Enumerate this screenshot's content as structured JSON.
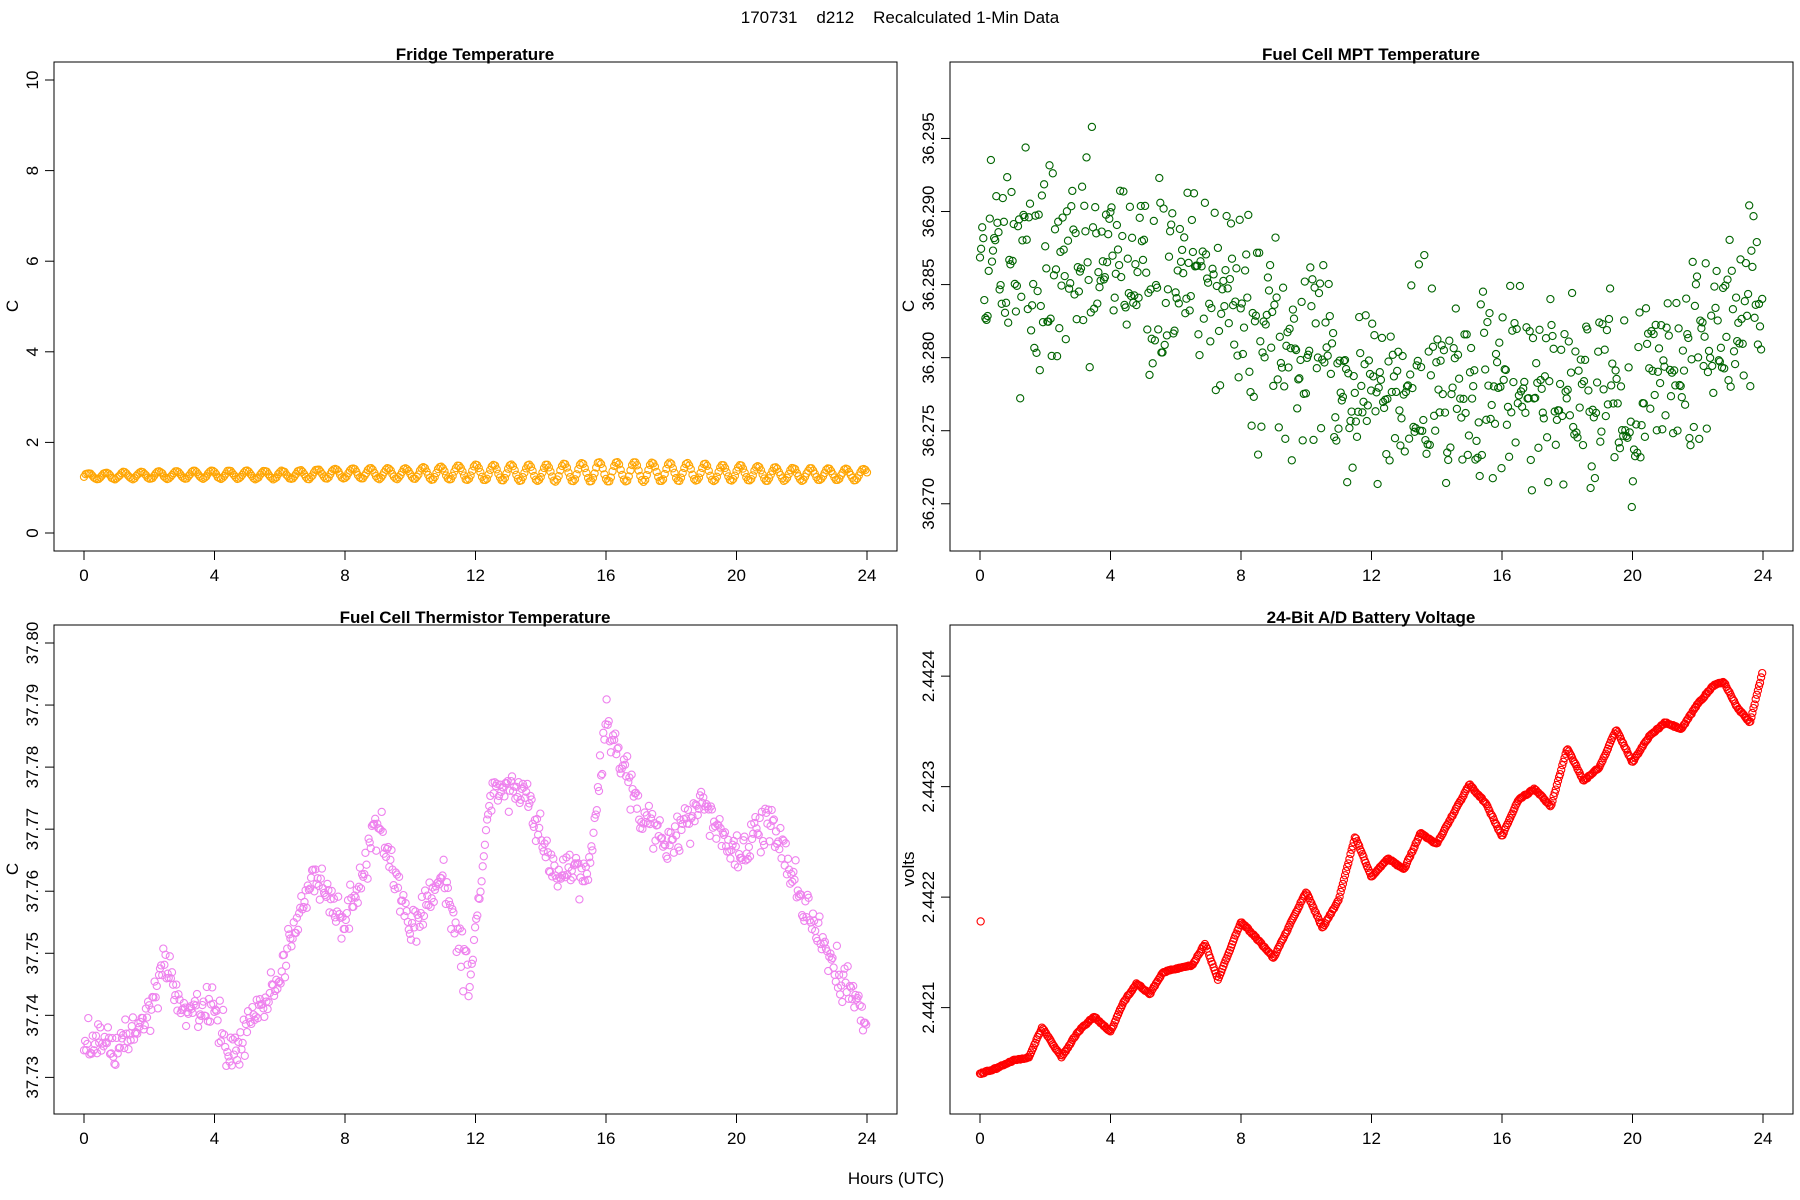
{
  "figure": {
    "title": "170731    d212    Recalculated 1-Min Data",
    "xlabel": "Hours (UTC)"
  },
  "chart_data": [
    {
      "type": "scatter",
      "title": "Fridge Temperature",
      "ylabel": "C",
      "xlim": [
        0,
        24
      ],
      "ylim": [
        0,
        10
      ],
      "xticks": [
        0,
        4,
        8,
        12,
        16,
        20,
        24
      ],
      "yticks": [
        0,
        2,
        4,
        6,
        8,
        10
      ],
      "ytick_labels": [
        "0",
        "2",
        "4",
        "6",
        "8",
        "10"
      ],
      "color": "#FFA500",
      "sample_interval_hours": 0.05,
      "envelope": {
        "x": [
          0,
          2,
          4,
          6,
          8,
          10,
          12,
          14,
          16,
          18,
          20,
          22,
          24
        ],
        "low": [
          1.18,
          1.19,
          1.2,
          1.19,
          1.2,
          1.19,
          1.16,
          1.14,
          1.13,
          1.14,
          1.15,
          1.16,
          1.17
        ],
        "high": [
          1.32,
          1.36,
          1.38,
          1.37,
          1.43,
          1.43,
          1.52,
          1.5,
          1.58,
          1.55,
          1.5,
          1.43,
          1.41
        ]
      }
    },
    {
      "type": "scatter",
      "title": "Fuel Cell MPT Temperature",
      "ylabel": "C",
      "xlim": [
        0,
        24
      ],
      "ylim": [
        36.268,
        36.299
      ],
      "xticks": [
        0,
        4,
        8,
        12,
        16,
        20,
        24
      ],
      "yticks": [
        36.27,
        36.275,
        36.28,
        36.285,
        36.29,
        36.295
      ],
      "ytick_labels": [
        "36.270",
        "36.275",
        "36.280",
        "36.285",
        "36.290",
        "36.295"
      ],
      "color": "#006400",
      "sample_interval_hours": 0.0333,
      "noise_sd": 0.0032,
      "trend": {
        "x": [
          0,
          2,
          4,
          6,
          8,
          10,
          12,
          14,
          16,
          18,
          20,
          22,
          24
        ],
        "y": [
          36.287,
          36.2865,
          36.2865,
          36.285,
          36.2835,
          36.28,
          36.2775,
          36.2785,
          36.2775,
          36.278,
          36.277,
          36.28,
          36.285
        ]
      }
    },
    {
      "type": "scatter",
      "title": "Fuel Cell Thermistor Temperature",
      "ylabel": "C",
      "xlim": [
        0,
        24
      ],
      "ylim": [
        37.727,
        37.8
      ],
      "xticks": [
        0,
        4,
        8,
        12,
        16,
        20,
        24
      ],
      "yticks": [
        37.73,
        37.74,
        37.75,
        37.76,
        37.77,
        37.78,
        37.79,
        37.8
      ],
      "ytick_labels": [
        "37.73",
        "37.74",
        "37.75",
        "37.76",
        "37.77",
        "37.78",
        "37.79",
        "37.80"
      ],
      "color": "#EE82EE",
      "sample_interval_hours": 0.0333,
      "noise_sd": 0.0017,
      "trend": {
        "x": [
          0,
          1,
          2,
          2.5,
          3,
          4,
          4.5,
          5,
          6,
          7,
          8,
          9,
          10,
          11,
          11.8,
          12.5,
          13.5,
          14.5,
          15.5,
          16,
          17,
          18,
          19,
          20,
          21,
          22,
          23,
          24
        ],
        "y": [
          37.736,
          37.735,
          37.74,
          37.748,
          37.74,
          37.742,
          37.733,
          37.738,
          37.746,
          37.763,
          37.755,
          37.771,
          37.754,
          37.763,
          37.745,
          37.777,
          37.776,
          37.762,
          37.763,
          37.788,
          37.773,
          37.768,
          37.775,
          37.765,
          37.772,
          37.758,
          37.748,
          37.739
        ]
      }
    },
    {
      "type": "scatter",
      "title": "24-Bit A/D Battery Voltage",
      "ylabel": "volts",
      "xlim": [
        0,
        24
      ],
      "ylim": [
        2.44202,
        2.44243
      ],
      "xticks": [
        0,
        4,
        8,
        12,
        16,
        20,
        24
      ],
      "yticks": [
        2.4421,
        2.4422,
        2.4423,
        2.4424
      ],
      "ytick_labels": [
        "2.4421",
        "2.4422",
        "2.4423",
        "2.4424"
      ],
      "color": "#FF0000",
      "sample_interval_hours": 0.0333,
      "outlier": {
        "x": 0.02,
        "y": 2.442178
      },
      "trend": {
        "x": [
          0,
          0.5,
          1,
          1.5,
          1.9,
          2.5,
          3,
          3.5,
          4,
          4.4,
          4.8,
          5.2,
          5.6,
          6,
          6.5,
          6.9,
          7.3,
          7.6,
          8,
          8.5,
          9,
          9.5,
          10,
          10.5,
          11,
          11.5,
          12,
          12.5,
          13,
          13.5,
          14,
          14.5,
          15,
          15.5,
          16,
          16.5,
          17,
          17.5,
          18,
          18.5,
          19,
          19.5,
          20,
          20.5,
          21,
          21.5,
          22,
          22.5,
          22.8,
          23.2,
          23.6,
          24
        ],
        "y": [
          2.44204,
          2.442045,
          2.442052,
          2.442055,
          2.442082,
          2.442055,
          2.442078,
          2.442092,
          2.442078,
          2.442105,
          2.442122,
          2.442112,
          2.442132,
          2.442135,
          2.442138,
          2.442158,
          2.442125,
          2.442148,
          2.442178,
          2.442162,
          2.442145,
          2.442175,
          2.442205,
          2.442172,
          2.442198,
          2.442255,
          2.442218,
          2.442235,
          2.442225,
          2.442258,
          2.442248,
          2.442275,
          2.442302,
          2.442285,
          2.442255,
          2.442288,
          2.442298,
          2.442282,
          2.442335,
          2.442305,
          2.442318,
          2.442352,
          2.442322,
          2.442345,
          2.442358,
          2.442352,
          2.442375,
          2.442392,
          2.442395,
          2.442372,
          2.442358,
          2.442405
        ]
      }
    }
  ]
}
